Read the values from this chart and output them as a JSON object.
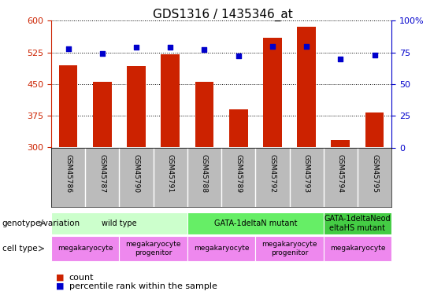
{
  "title": "GDS1316 / 1435346_at",
  "samples": [
    "GSM45786",
    "GSM45787",
    "GSM45790",
    "GSM45791",
    "GSM45788",
    "GSM45789",
    "GSM45792",
    "GSM45793",
    "GSM45794",
    "GSM45795"
  ],
  "bar_values": [
    495,
    455,
    492,
    520,
    455,
    390,
    560,
    585,
    318,
    382
  ],
  "dot_values": [
    78,
    74,
    79,
    79,
    77,
    72,
    80,
    80,
    70,
    73
  ],
  "ylim_left": [
    300,
    600
  ],
  "ylim_right": [
    0,
    100
  ],
  "yticks_left": [
    300,
    375,
    450,
    525,
    600
  ],
  "yticks_right": [
    0,
    25,
    50,
    75,
    100
  ],
  "bar_color": "#cc2200",
  "dot_color": "#0000cc",
  "bar_bottom": 300,
  "genotype_groups": [
    {
      "label": "wild type",
      "start": 0,
      "end": 4,
      "color": "#ccffcc"
    },
    {
      "label": "GATA-1deltaN mutant",
      "start": 4,
      "end": 8,
      "color": "#66ee66"
    },
    {
      "label": "GATA-1deltaNeod\neltaHS mutant",
      "start": 8,
      "end": 10,
      "color": "#44cc44"
    }
  ],
  "cell_type_groups": [
    {
      "label": "megakaryocyte",
      "start": 0,
      "end": 2,
      "color": "#ee88ee"
    },
    {
      "label": "megakaryocyte\nprogenitor",
      "start": 2,
      "end": 4,
      "color": "#ee88ee"
    },
    {
      "label": "megakaryocyte",
      "start": 4,
      "end": 6,
      "color": "#ee88ee"
    },
    {
      "label": "megakaryocyte\nprogenitor",
      "start": 6,
      "end": 8,
      "color": "#ee88ee"
    },
    {
      "label": "megakaryocyte",
      "start": 8,
      "end": 10,
      "color": "#ee88ee"
    }
  ],
  "ylabel_left_color": "#cc2200",
  "ylabel_right_color": "#0000cc",
  "bg_sample_label": "#cccccc",
  "legend_count_color": "#cc2200",
  "legend_pct_color": "#0000cc"
}
